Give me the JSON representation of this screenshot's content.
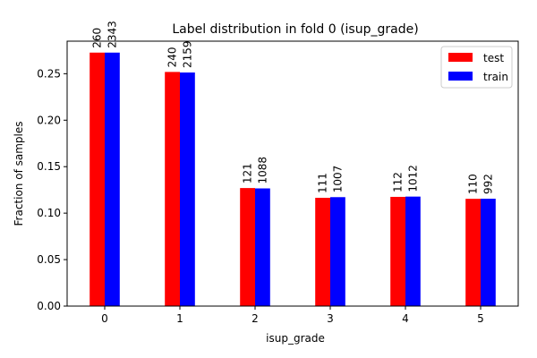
{
  "chart_data": {
    "type": "bar",
    "title": "Label distribution in fold 0 (isup_grade)",
    "xlabel": "isup_grade",
    "ylabel": "Fraction of samples",
    "categories": [
      "0",
      "1",
      "2",
      "3",
      "4",
      "5"
    ],
    "ylim": [
      0,
      0.285
    ],
    "yticks": [
      "0.00",
      "0.05",
      "0.10",
      "0.15",
      "0.20",
      "0.25"
    ],
    "ytick_values": [
      0,
      0.05,
      0.1,
      0.15,
      0.2,
      0.25
    ],
    "grid": false,
    "legend_position": "top-right",
    "series": [
      {
        "name": "test",
        "color": "#ff0000",
        "values": [
          0.2727,
          0.2519,
          0.127,
          0.1165,
          0.1175,
          0.1154
        ],
        "counts": [
          "260",
          "240",
          "121",
          "111",
          "112",
          "110"
        ]
      },
      {
        "name": "train",
        "color": "#0000ff",
        "values": [
          0.2727,
          0.2513,
          0.1266,
          0.1172,
          0.1178,
          0.1155
        ],
        "counts": [
          "2343",
          "2159",
          "1088",
          "1007",
          "1012",
          "992"
        ]
      }
    ]
  }
}
